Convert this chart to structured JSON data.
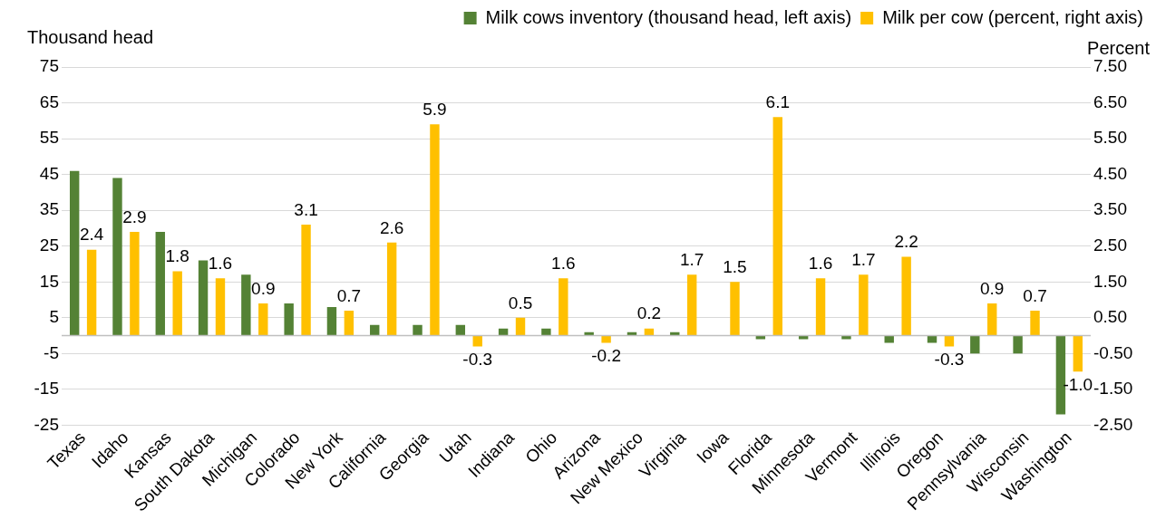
{
  "chart_data": {
    "type": "bar",
    "ylabel": "Thousand head",
    "y2label": "Percent",
    "categories": [
      "Texas",
      "Idaho",
      "Kansas",
      "South Dakota",
      "Michigan",
      "Colorado",
      "New York",
      "California",
      "Georgia",
      "Utah",
      "Indiana",
      "Ohio",
      "Arizona",
      "New Mexico",
      "Virginia",
      "Iowa",
      "Florida",
      "Minnesota",
      "Vermont",
      "Illinois",
      "Oregon",
      "Pennsylvania",
      "Wisconsin",
      "Washington"
    ],
    "series": [
      {
        "name": "Milk cows inventory (thousand head, left axis)",
        "color": "#548235",
        "values": [
          46,
          44,
          29,
          21,
          17,
          9,
          8,
          3,
          3,
          3,
          2,
          2,
          1,
          1,
          1,
          0,
          -1,
          -1,
          -1,
          -2,
          -2,
          -5,
          -5,
          -22
        ]
      },
      {
        "name": "Milk per cow (percent, right axis)",
        "color": "#ffc000",
        "axis": "y2",
        "values": [
          2.4,
          2.9,
          1.8,
          1.6,
          0.9,
          3.1,
          0.7,
          2.6,
          5.9,
          -0.3,
          0.5,
          1.6,
          -0.2,
          0.2,
          1.7,
          1.5,
          6.1,
          1.6,
          1.7,
          2.2,
          -0.3,
          0.9,
          0.7,
          -1.0
        ],
        "value_labels": [
          "2.4",
          "2.9",
          "1.8",
          "1.6",
          "0.9",
          "3.1",
          "0.7",
          "2.6",
          "5.9",
          "-0.3",
          "0.5",
          "1.6",
          "-0.2",
          "0.2",
          "1.7",
          "1.5",
          "6.1",
          "1.6",
          "1.7",
          "2.2",
          "-0.3",
          "0.9",
          "0.7",
          "-1.0"
        ]
      }
    ],
    "ylim": [
      -25,
      75
    ],
    "yticks": [
      -25,
      -15,
      -5,
      5,
      15,
      25,
      35,
      45,
      55,
      65,
      75
    ],
    "y2lim": [
      -2.5,
      7.5
    ],
    "y2ticks": [
      {
        "value": -2.5,
        "label": "-2.50"
      },
      {
        "value": -1.5,
        "label": "-1.50"
      },
      {
        "value": -0.5,
        "label": "-0.50"
      },
      {
        "value": 0.5,
        "label": "0.50"
      },
      {
        "value": 1.5,
        "label": "1.50"
      },
      {
        "value": 2.5,
        "label": "2.50"
      },
      {
        "value": 3.5,
        "label": "3.50"
      },
      {
        "value": 4.5,
        "label": "4.50"
      },
      {
        "value": 5.5,
        "label": "5.50"
      },
      {
        "value": 6.5,
        "label": "6.50"
      },
      {
        "value": 7.5,
        "label": "7.50"
      }
    ],
    "ref_lines": [
      {
        "axis": "y",
        "value": 0,
        "color": "#bfbfbf"
      }
    ],
    "grid": "y",
    "legend": "top"
  }
}
